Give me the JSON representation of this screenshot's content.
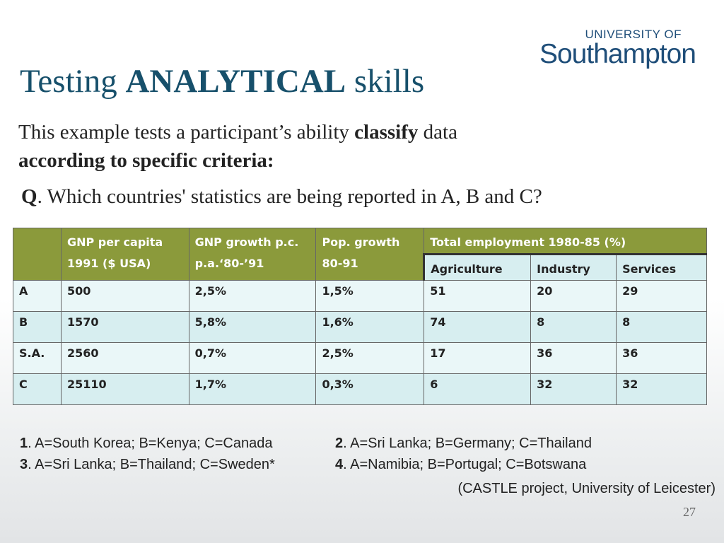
{
  "logo": {
    "line1": "UNIVERSITY OF",
    "line2": "Southampton"
  },
  "title": {
    "pre": "Testing ",
    "bold": "ANALYTICAL",
    "post": " skills"
  },
  "subtitle": {
    "part1": "This example tests a participant’s ability ",
    "bold1": "classify",
    "part2": " data",
    "bold2": "according to specific criteria:"
  },
  "question": {
    "label": "Q",
    "text": ". Which countries' statistics are being reported in A, B and C?"
  },
  "table": {
    "headers": {
      "gnp": "GNP per capita 1991 ($ USA)",
      "growth": "GNP growth p.c. p.a.‘80-’91",
      "pop": "Pop. growth 80-91",
      "total": "Total employment 1980-85 (%)",
      "agri": "Agriculture",
      "industry": "Industry",
      "services": "Services"
    },
    "rows": [
      [
        "A",
        "500",
        "2,5%",
        "1,5%",
        "51",
        "20",
        "29"
      ],
      [
        "B",
        "1570",
        "5,8%",
        "1,6%",
        "74",
        "8",
        "8"
      ],
      [
        "S.A.",
        "2560",
        "0,7%",
        "2,5%",
        "17",
        "36",
        "36"
      ],
      [
        "C",
        "25110",
        "1,7%",
        "0,3%",
        "6",
        "32",
        "32"
      ]
    ]
  },
  "answers": [
    {
      "num": "1",
      "text": ". A=South Korea; B=Kenya; C=Canada"
    },
    {
      "num": "2",
      "text": ". A=Sri Lanka; B=Germany; C=Thailand"
    },
    {
      "num": "3",
      "text": ". A=Sri Lanka; B=Thailand; C=Sweden*"
    },
    {
      "num": "4",
      "text": ". A=Namibia; B=Portugal; C=Botswana"
    }
  ],
  "source": "(CASTLE project, University of Leicester)",
  "page_number": "27"
}
